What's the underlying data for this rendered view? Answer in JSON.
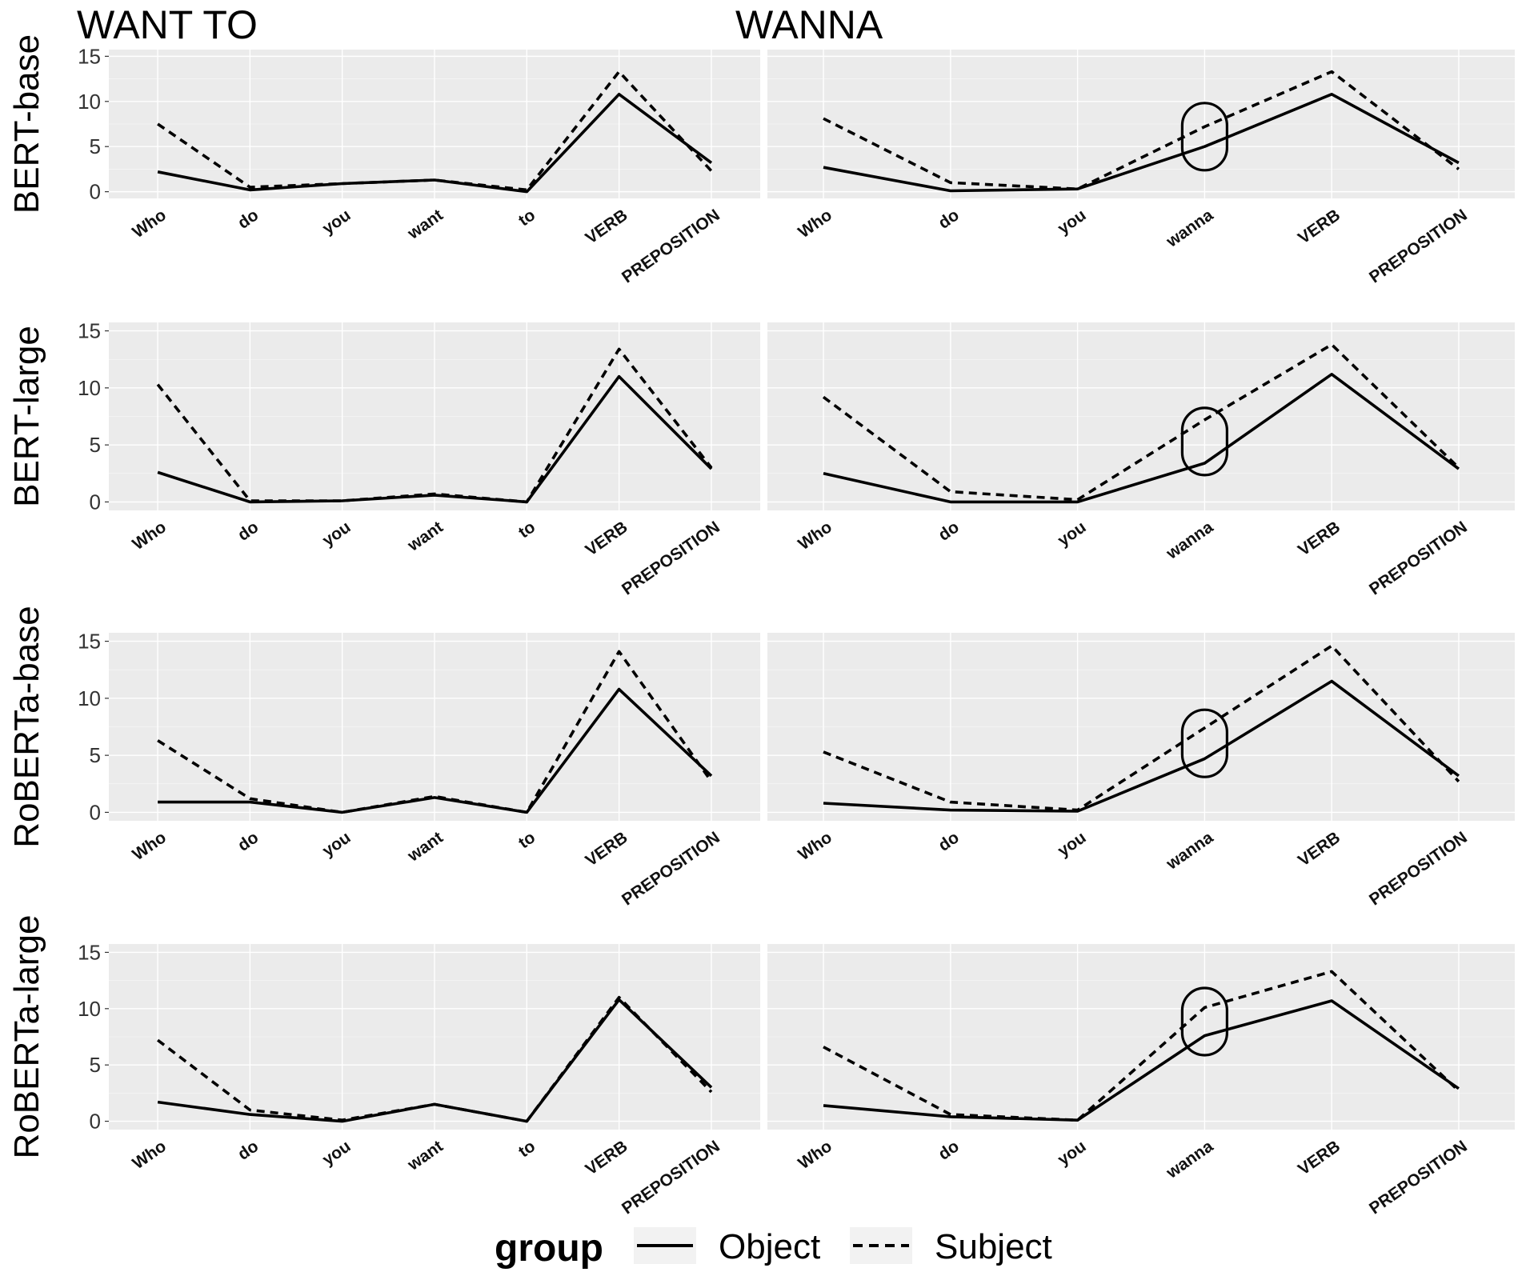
{
  "chart_data": {
    "type": "line",
    "legend": {
      "title": "group",
      "position": "bottom",
      "entries": [
        {
          "name": "Object",
          "linetype": "solid"
        },
        {
          "name": "Subject",
          "linetype": "dashed"
        }
      ]
    },
    "ylim": [
      0,
      15
    ],
    "yticks": [
      0,
      5,
      10,
      15
    ],
    "grid": true,
    "line_color": "#000000",
    "panel_background": "#ebebeb",
    "columns": [
      {
        "title": "WANT TO",
        "categories": [
          "Who",
          "do",
          "you",
          "want",
          "to",
          "VERB",
          "PREPOSITION"
        ]
      },
      {
        "title": "WANNA",
        "categories": [
          "Who",
          "do",
          "you",
          "wanna",
          "VERB",
          "PREPOSITION"
        ],
        "highlight_category": "wanna"
      }
    ],
    "rows": [
      {
        "title": "BERT-base",
        "panels": [
          {
            "series": [
              {
                "name": "Object",
                "values": [
                  2.2,
                  0.2,
                  0.9,
                  1.3,
                  0.0,
                  10.8,
                  3.2
                ]
              },
              {
                "name": "Subject",
                "values": [
                  7.5,
                  0.5,
                  0.9,
                  1.3,
                  0.2,
                  13.3,
                  2.3
                ]
              }
            ]
          },
          {
            "series": [
              {
                "name": "Object",
                "values": [
                  2.7,
                  0.1,
                  0.3,
                  5.0,
                  10.8,
                  3.2
                ]
              },
              {
                "name": "Subject",
                "values": [
                  8.1,
                  1.0,
                  0.3,
                  7.2,
                  13.3,
                  2.5
                ]
              }
            ]
          }
        ]
      },
      {
        "title": "BERT-large",
        "panels": [
          {
            "series": [
              {
                "name": "Object",
                "values": [
                  2.6,
                  0.0,
                  0.1,
                  0.6,
                  0.0,
                  11.0,
                  2.9
                ]
              },
              {
                "name": "Subject",
                "values": [
                  10.3,
                  0.1,
                  0.1,
                  0.7,
                  0.0,
                  13.4,
                  3.0
                ]
              }
            ]
          },
          {
            "series": [
              {
                "name": "Object",
                "values": [
                  2.5,
                  0.0,
                  0.0,
                  3.4,
                  11.2,
                  2.9
                ]
              },
              {
                "name": "Subject",
                "values": [
                  9.2,
                  0.9,
                  0.2,
                  7.2,
                  13.8,
                  3.0
                ]
              }
            ]
          }
        ]
      },
      {
        "title": "RoBERTa-base",
        "panels": [
          {
            "series": [
              {
                "name": "Object",
                "values": [
                  0.9,
                  0.9,
                  0.0,
                  1.3,
                  0.0,
                  10.8,
                  3.2
                ]
              },
              {
                "name": "Subject",
                "values": [
                  6.3,
                  1.2,
                  0.0,
                  1.4,
                  0.0,
                  14.1,
                  2.7
                ]
              }
            ]
          },
          {
            "series": [
              {
                "name": "Object",
                "values": [
                  0.8,
                  0.2,
                  0.1,
                  4.7,
                  11.5,
                  3.2
                ]
              },
              {
                "name": "Subject",
                "values": [
                  5.3,
                  0.9,
                  0.2,
                  7.4,
                  14.6,
                  2.7
                ]
              }
            ]
          }
        ]
      },
      {
        "title": "RoBERTa-large",
        "panels": [
          {
            "series": [
              {
                "name": "Object",
                "values": [
                  1.7,
                  0.6,
                  0.0,
                  1.5,
                  0.0,
                  10.8,
                  3.0
                ]
              },
              {
                "name": "Subject",
                "values": [
                  7.2,
                  1.0,
                  0.1,
                  1.5,
                  0.0,
                  11.0,
                  2.6
                ]
              }
            ]
          },
          {
            "series": [
              {
                "name": "Object",
                "values": [
                  1.4,
                  0.4,
                  0.1,
                  7.6,
                  10.7,
                  2.9
                ]
              },
              {
                "name": "Subject",
                "values": [
                  6.6,
                  0.6,
                  0.1,
                  10.1,
                  13.3,
                  2.7
                ]
              }
            ]
          }
        ]
      }
    ]
  }
}
